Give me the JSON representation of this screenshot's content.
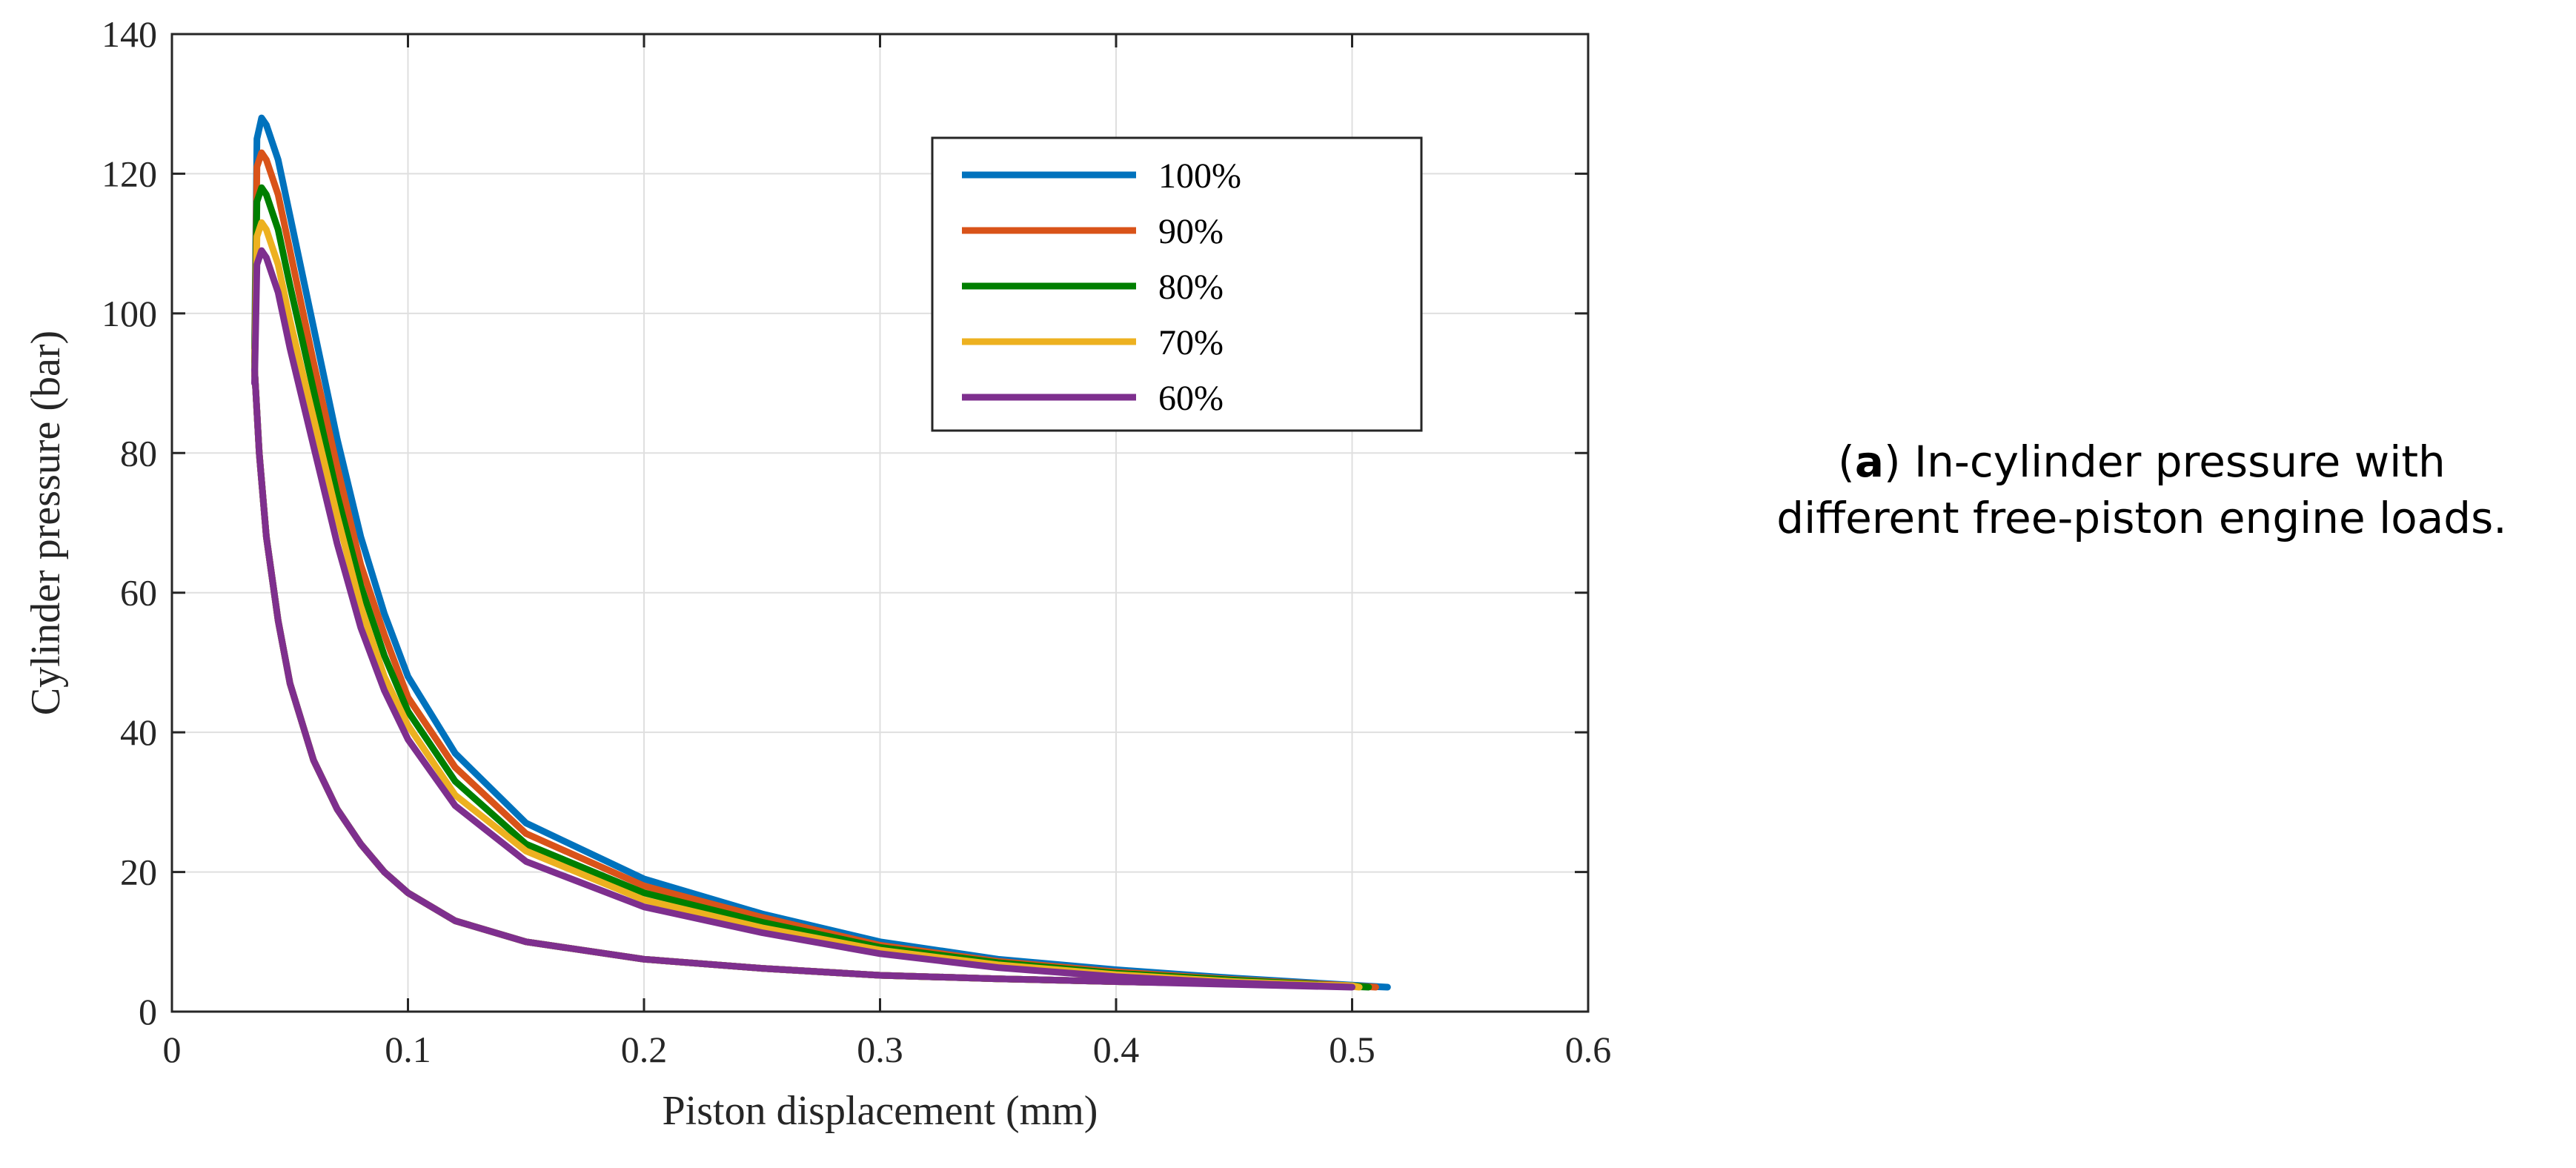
{
  "chart_data": {
    "type": "line",
    "title": "",
    "xlabel": "Piston displacement (mm)",
    "ylabel": "Cylinder pressure (bar)",
    "xlim": [
      0,
      0.6
    ],
    "ylim": [
      0,
      140
    ],
    "xticks": [
      0,
      0.1,
      0.2,
      0.3,
      0.4,
      0.5,
      0.6
    ],
    "xtick_labels": [
      "0",
      "0.1",
      "0.2",
      "0.3",
      "0.4",
      "0.5",
      "0.6"
    ],
    "yticks": [
      0,
      20,
      40,
      60,
      80,
      100,
      120,
      140
    ],
    "ytick_labels": [
      "0",
      "20",
      "40",
      "60",
      "80",
      "100",
      "120",
      "140"
    ],
    "grid": true,
    "legend_position": "top-right",
    "series": [
      {
        "name": "100%",
        "color": "#0072BD",
        "expansion": {
          "x": [
            0.035,
            0.036,
            0.038,
            0.04,
            0.045,
            0.05,
            0.06,
            0.07,
            0.08,
            0.09,
            0.1,
            0.12,
            0.15,
            0.2,
            0.25,
            0.3,
            0.35,
            0.4,
            0.45,
            0.5,
            0.515
          ],
          "y": [
            95,
            125,
            128,
            127,
            122,
            114,
            98,
            82,
            68,
            57,
            48,
            37,
            27,
            19,
            14,
            10,
            7.5,
            6,
            4.8,
            3.8,
            3.5
          ]
        },
        "compression": {
          "x": [
            0.515,
            0.5,
            0.45,
            0.4,
            0.35,
            0.3,
            0.25,
            0.2,
            0.15,
            0.12,
            0.1,
            0.09,
            0.08,
            0.07,
            0.06,
            0.05,
            0.045,
            0.04,
            0.037,
            0.035
          ],
          "y": [
            3.5,
            3.7,
            4.0,
            4.3,
            4.7,
            5.2,
            6.2,
            7.5,
            10,
            13,
            17,
            20,
            24,
            29,
            36,
            47,
            56,
            68,
            80,
            92
          ]
        }
      },
      {
        "name": "90%",
        "color": "#D95319",
        "expansion": {
          "x": [
            0.035,
            0.036,
            0.038,
            0.04,
            0.045,
            0.05,
            0.06,
            0.07,
            0.08,
            0.09,
            0.1,
            0.12,
            0.15,
            0.2,
            0.25,
            0.3,
            0.35,
            0.4,
            0.45,
            0.5,
            0.51
          ],
          "y": [
            93,
            121,
            123,
            122,
            117,
            109,
            93,
            78,
            64,
            54,
            45,
            35,
            25.5,
            18,
            13.5,
            9.5,
            7.2,
            5.7,
            4.6,
            3.7,
            3.5
          ]
        },
        "compression": {
          "x": [
            0.51,
            0.5,
            0.45,
            0.4,
            0.35,
            0.3,
            0.25,
            0.2,
            0.15,
            0.12,
            0.1,
            0.09,
            0.08,
            0.07,
            0.06,
            0.05,
            0.045,
            0.04,
            0.037,
            0.035
          ],
          "y": [
            3.5,
            3.7,
            4.0,
            4.3,
            4.7,
            5.2,
            6.2,
            7.5,
            10,
            13,
            17,
            20,
            24,
            29,
            36,
            47,
            56,
            68,
            80,
            92
          ]
        }
      },
      {
        "name": "80%",
        "color": "#007F00",
        "expansion": {
          "x": [
            0.035,
            0.036,
            0.038,
            0.04,
            0.045,
            0.05,
            0.06,
            0.07,
            0.08,
            0.09,
            0.1,
            0.12,
            0.15,
            0.2,
            0.25,
            0.3,
            0.35,
            0.4,
            0.45,
            0.5,
            0.507
          ],
          "y": [
            92,
            116,
            118,
            117,
            112,
            104,
            89,
            74,
            61,
            51,
            43,
            33,
            24,
            17,
            12.8,
            9.2,
            7,
            5.5,
            4.5,
            3.6,
            3.5
          ]
        },
        "compression": {
          "x": [
            0.507,
            0.5,
            0.45,
            0.4,
            0.35,
            0.3,
            0.25,
            0.2,
            0.15,
            0.12,
            0.1,
            0.09,
            0.08,
            0.07,
            0.06,
            0.05,
            0.045,
            0.04,
            0.037,
            0.035
          ],
          "y": [
            3.5,
            3.7,
            4.0,
            4.3,
            4.7,
            5.2,
            6.2,
            7.5,
            10,
            13,
            17,
            20,
            24,
            29,
            36,
            47,
            56,
            68,
            80,
            92
          ]
        }
      },
      {
        "name": "70%",
        "color": "#EDB120",
        "expansion": {
          "x": [
            0.035,
            0.036,
            0.038,
            0.04,
            0.045,
            0.05,
            0.06,
            0.07,
            0.08,
            0.09,
            0.1,
            0.12,
            0.15,
            0.2,
            0.25,
            0.3,
            0.35,
            0.4,
            0.45,
            0.5,
            0.503
          ],
          "y": [
            91,
            111,
            113,
            112,
            107,
            99,
            85,
            71,
            58,
            48,
            41,
            31,
            23,
            16,
            12,
            8.8,
            6.7,
            5.3,
            4.3,
            3.6,
            3.5
          ]
        },
        "compression": {
          "x": [
            0.503,
            0.5,
            0.45,
            0.4,
            0.35,
            0.3,
            0.25,
            0.2,
            0.15,
            0.12,
            0.1,
            0.09,
            0.08,
            0.07,
            0.06,
            0.05,
            0.045,
            0.04,
            0.037,
            0.035
          ],
          "y": [
            3.5,
            3.7,
            4.0,
            4.3,
            4.7,
            5.2,
            6.2,
            7.5,
            10,
            13,
            17,
            20,
            24,
            29,
            36,
            47,
            56,
            68,
            80,
            92
          ]
        }
      },
      {
        "name": "60%",
        "color": "#7E2F8E",
        "expansion": {
          "x": [
            0.035,
            0.036,
            0.038,
            0.04,
            0.045,
            0.05,
            0.06,
            0.07,
            0.08,
            0.09,
            0.1,
            0.12,
            0.15,
            0.2,
            0.25,
            0.3,
            0.35,
            0.4,
            0.45,
            0.5
          ],
          "y": [
            90,
            107,
            109,
            108,
            103,
            95,
            81,
            67,
            55,
            46,
            39,
            29.5,
            21.5,
            15,
            11.3,
            8.3,
            6.3,
            5,
            4.1,
            3.5
          ]
        },
        "compression": {
          "x": [
            0.5,
            0.45,
            0.4,
            0.35,
            0.3,
            0.25,
            0.2,
            0.15,
            0.12,
            0.1,
            0.09,
            0.08,
            0.07,
            0.06,
            0.05,
            0.045,
            0.04,
            0.037,
            0.035
          ],
          "y": [
            3.5,
            3.9,
            4.3,
            4.7,
            5.2,
            6.2,
            7.5,
            10,
            13,
            17,
            20,
            24,
            29,
            36,
            47,
            56,
            68,
            80,
            92
          ]
        }
      }
    ]
  },
  "caption": {
    "panel_letter": "a",
    "line1": "In-cylinder pressure with",
    "line2": "different free-piston engine loads."
  }
}
